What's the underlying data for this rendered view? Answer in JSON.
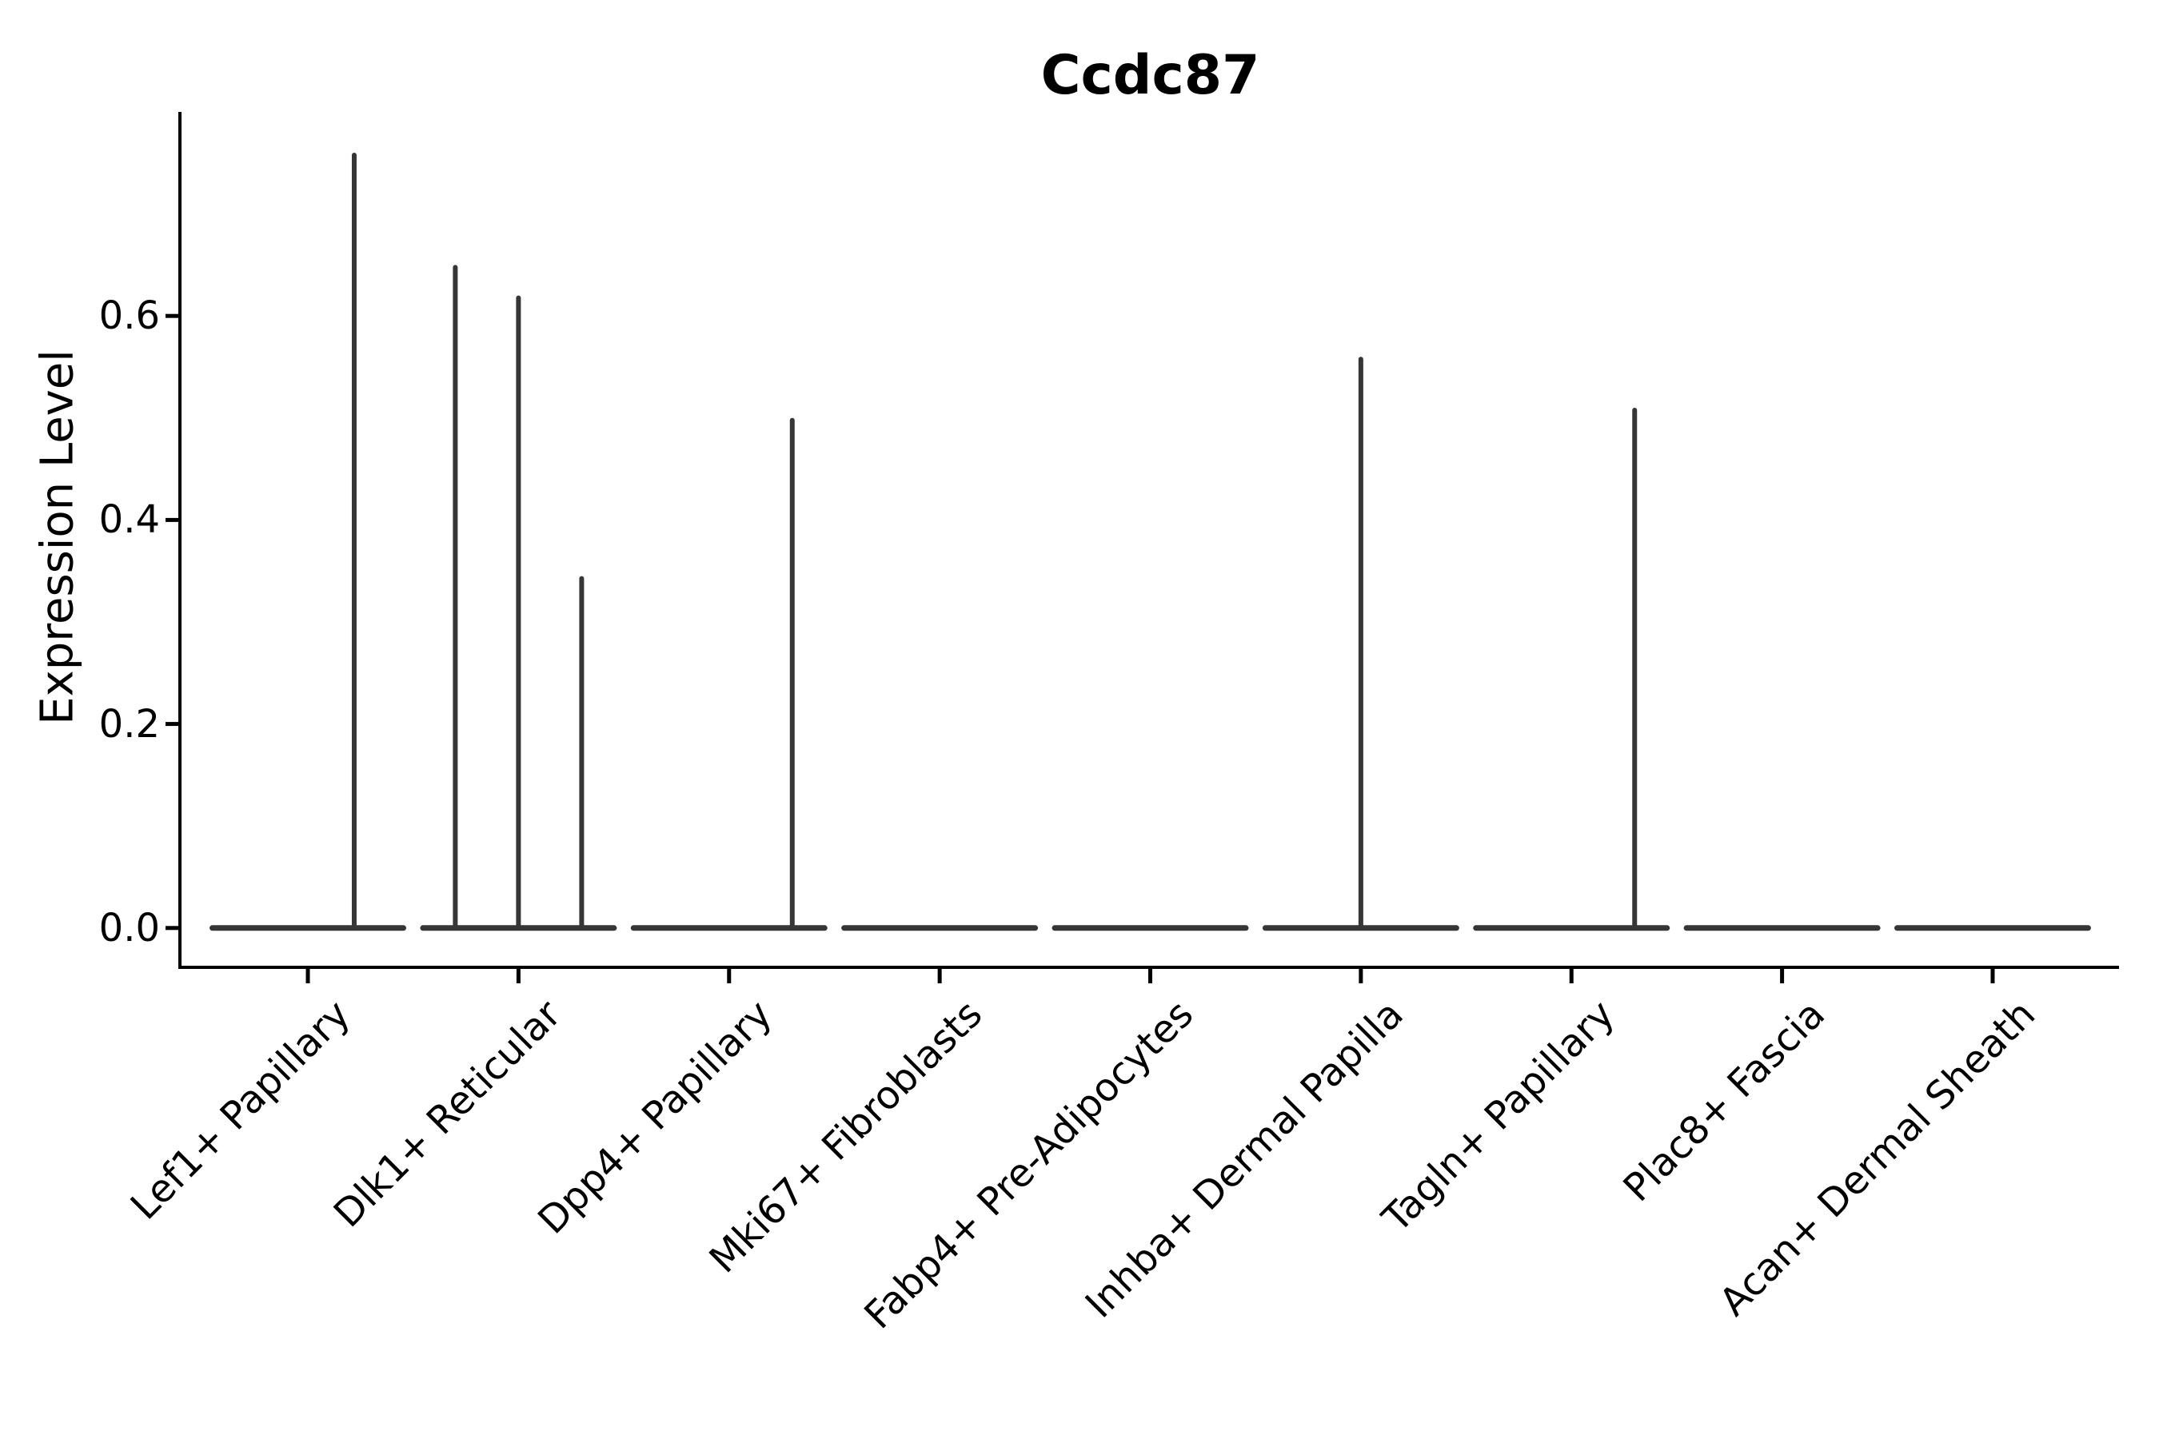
{
  "chart_data": {
    "type": "violin",
    "title": "Ccdc87",
    "ylabel": "Expression Level",
    "xlabel": "",
    "yticks": [
      0.0,
      0.2,
      0.4,
      0.6
    ],
    "ytick_labels": [
      "0.0",
      "0.2",
      "0.4",
      "0.6"
    ],
    "ylim": [
      -0.037,
      0.8
    ],
    "xlim_units": [
      -0.6,
      8.6
    ],
    "grid": false,
    "legend": null,
    "categories": [
      "Lef1+ Papillary",
      "Dlk1+ Reticular",
      "Dpp4+ Papillary",
      "Mki67+ Fibroblasts",
      "Fabp4+ Pre-Adipocytes",
      "Inhba+ Dermal Papilla",
      "Tagln+ Papillary",
      "Plac8+ Fascia",
      "Acan+ Dermal Sheath"
    ],
    "violins": [
      {
        "category": "Lef1+ Papillary",
        "base_value": 0.0,
        "base_halfwidth": 0.467,
        "spikes": [
          {
            "offset": 0.22,
            "peak": 0.76
          }
        ]
      },
      {
        "category": "Dlk1+ Reticular",
        "base_value": 0.0,
        "base_halfwidth": 0.467,
        "spikes": [
          {
            "offset": -0.3,
            "peak": 0.65
          },
          {
            "offset": 0.0,
            "peak": 0.62
          },
          {
            "offset": 0.3,
            "peak": 0.345
          }
        ]
      },
      {
        "category": "Dpp4+ Papillary",
        "base_value": 0.0,
        "base_halfwidth": 0.467,
        "spikes": [
          {
            "offset": 0.3,
            "peak": 0.5
          }
        ]
      },
      {
        "category": "Mki67+ Fibroblasts",
        "base_value": 0.0,
        "base_halfwidth": 0.467,
        "spikes": []
      },
      {
        "category": "Fabp4+ Pre-Adipocytes",
        "base_value": 0.0,
        "base_halfwidth": 0.467,
        "spikes": []
      },
      {
        "category": "Inhba+ Dermal Papilla",
        "base_value": 0.0,
        "base_halfwidth": 0.467,
        "spikes": [
          {
            "offset": 0.0,
            "peak": 0.56
          }
        ]
      },
      {
        "category": "Tagln+ Papillary",
        "base_value": 0.0,
        "base_halfwidth": 0.467,
        "spikes": [
          {
            "offset": 0.3,
            "peak": 0.51
          }
        ]
      },
      {
        "category": "Plac8+ Fascia",
        "base_value": 0.0,
        "base_halfwidth": 0.467,
        "spikes": []
      },
      {
        "category": "Acan+ Dermal Sheath",
        "base_value": 0.0,
        "base_halfwidth": 0.467,
        "spikes": []
      }
    ],
    "colors": {
      "violin": "#363636",
      "axis": "#000000",
      "text": "#000000",
      "background": "#ffffff"
    }
  }
}
